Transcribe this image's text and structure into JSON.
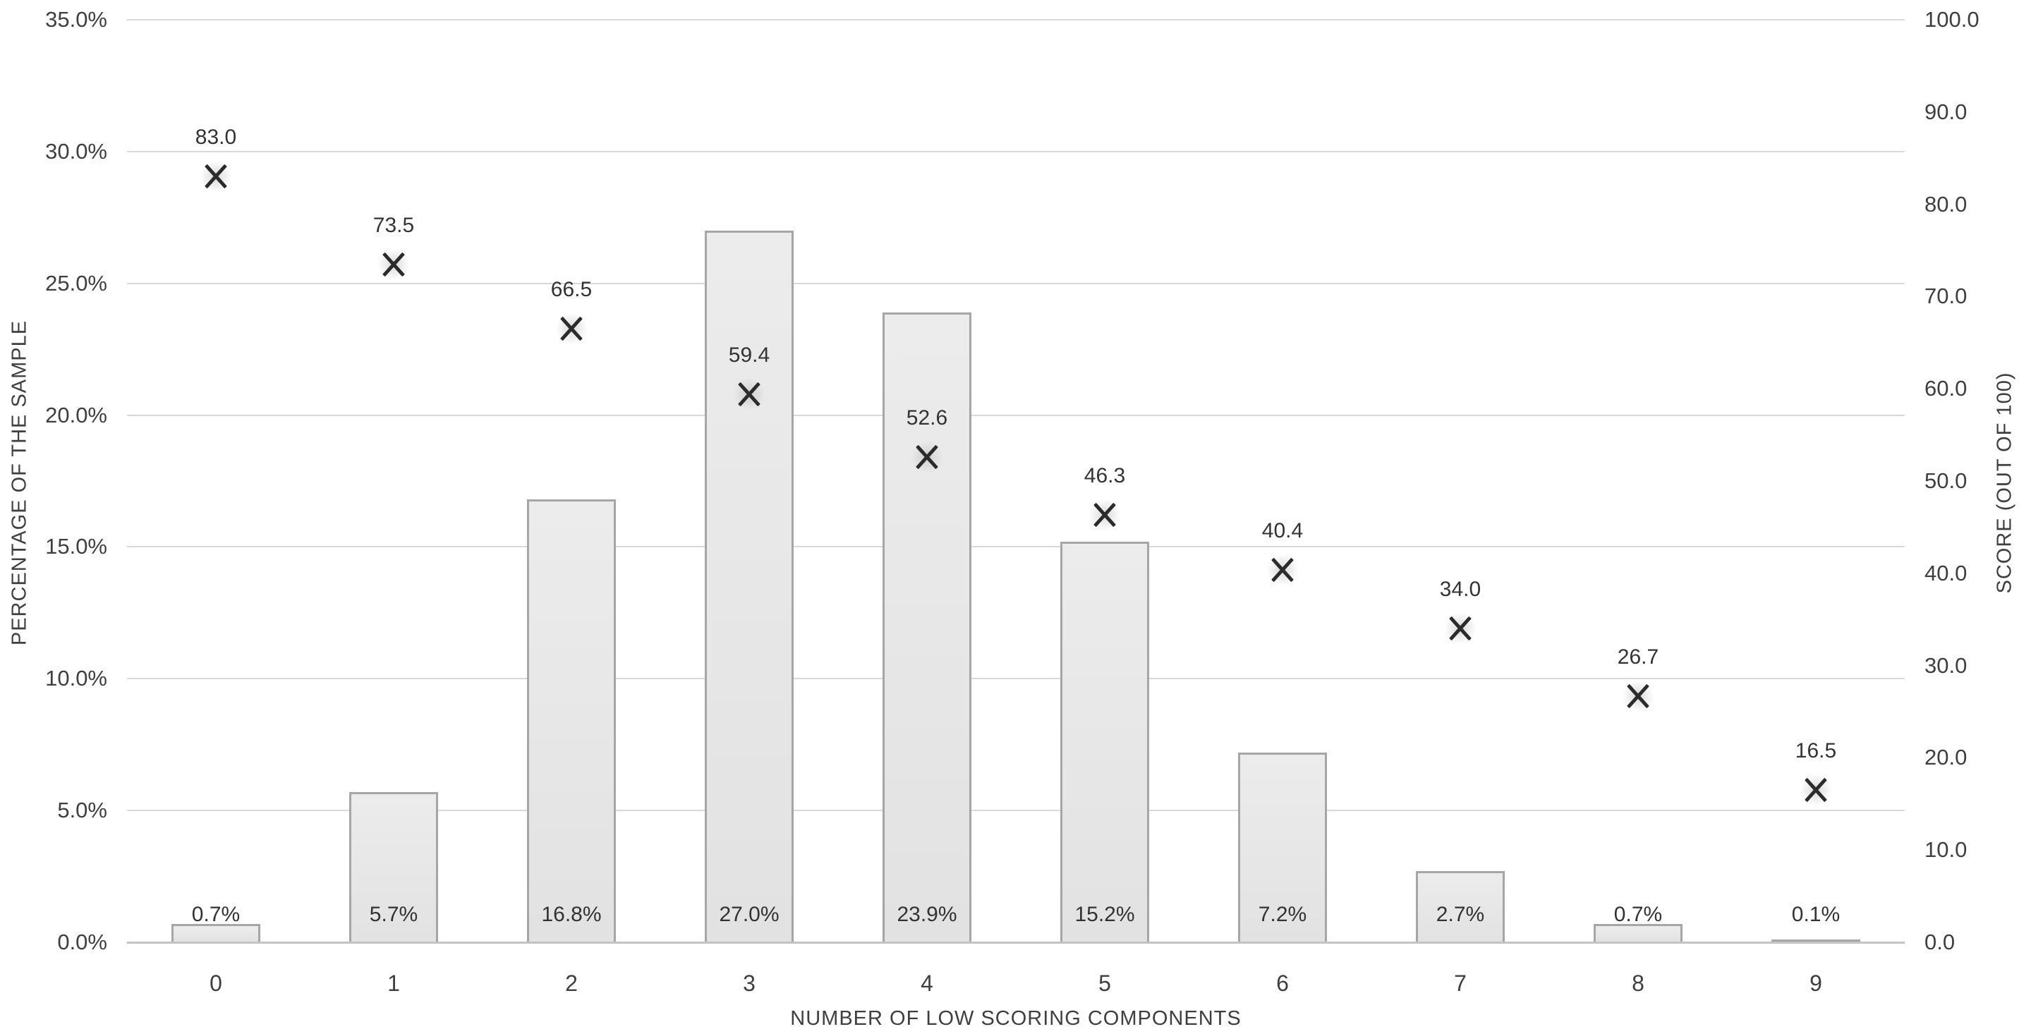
{
  "chart_data": {
    "type": "bar",
    "subtype": "combo-bar-scatter",
    "categories": [
      "0",
      "1",
      "2",
      "3",
      "4",
      "5",
      "6",
      "7",
      "8",
      "9"
    ],
    "series": [
      {
        "name": "percentage-of-sample-bars",
        "type": "bar",
        "axis": "left",
        "values": [
          0.7,
          5.7,
          16.8,
          27.0,
          23.9,
          15.2,
          7.2,
          2.7,
          0.7,
          0.1
        ],
        "labels": [
          "0.7%",
          "5.7%",
          "16.8%",
          "27.0%",
          "23.9%",
          "15.2%",
          "7.2%",
          "2.7%",
          "0.7%",
          "0.1%"
        ]
      },
      {
        "name": "score-markers",
        "type": "scatter",
        "axis": "right",
        "marker": "x",
        "values": [
          83.0,
          73.5,
          66.5,
          59.4,
          52.6,
          46.3,
          40.4,
          34.0,
          26.7,
          16.5
        ],
        "labels": [
          "83.0",
          "73.5",
          "66.5",
          "59.4",
          "52.6",
          "46.3",
          "40.4",
          "34.0",
          "26.7",
          "16.5"
        ]
      }
    ],
    "title": "",
    "xlabel": "NUMBER OF LOW SCORING COMPONENTS",
    "ylabel_left": "PERCENTAGE OF THE SAMPLE",
    "ylabel_right": "SCORE (OUT OF 100)",
    "left_axis": {
      "min": 0,
      "max": 35,
      "tick_values": [
        35,
        30,
        25,
        20,
        15,
        10,
        5,
        0
      ],
      "tick_labels": [
        "35.0%",
        "30.0%",
        "25.0%",
        "20.0%",
        "15.0%",
        "10.0%",
        "5.0%",
        "0.0%"
      ]
    },
    "right_axis": {
      "min": 0,
      "max": 100,
      "tick_values": [
        100,
        90,
        80,
        70,
        60,
        50,
        40,
        30,
        20,
        10,
        0
      ],
      "tick_labels": [
        "100.0",
        "90.0",
        "80.0",
        "70.0",
        "60.0",
        "50.0",
        "40.0",
        "30.0",
        "20.0",
        "10.0",
        "0.0"
      ]
    },
    "grid": "horizontal",
    "legend": "none",
    "colors": {
      "bar_fill": "#e8e8e8",
      "bar_border": "#a6a6a6",
      "gridline": "#d9d9d9",
      "axis_text": "#3f3f3f",
      "marker": "#2b2b2b",
      "background": "#ffffff"
    }
  }
}
